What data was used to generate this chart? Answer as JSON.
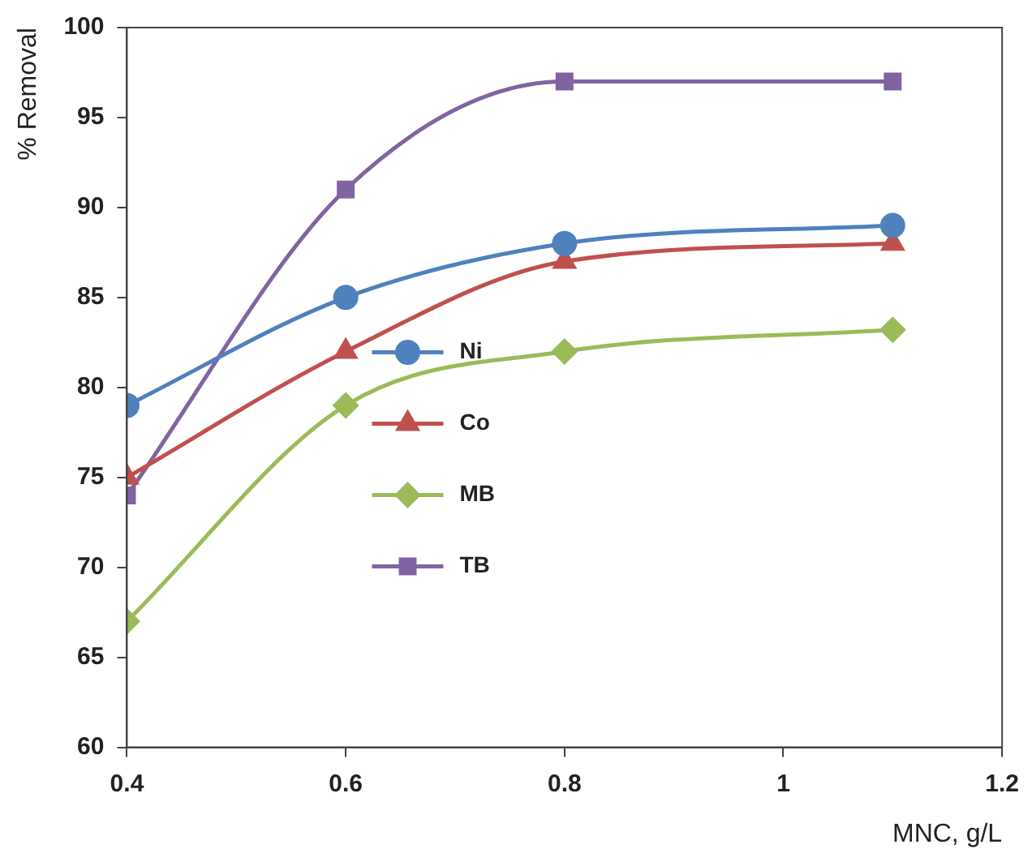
{
  "chart_data": {
    "type": "line",
    "xlabel": "MNC, g/L",
    "ylabel": "% Removal",
    "x": [
      0.4,
      0.6,
      0.8,
      1.1
    ],
    "series": [
      {
        "name": "Ni",
        "color": "#4f81bd",
        "marker": "circle",
        "values": [
          79,
          85,
          88,
          89
        ]
      },
      {
        "name": "Co",
        "color": "#c0504d",
        "marker": "triangle",
        "values": [
          75,
          82,
          87,
          88
        ]
      },
      {
        "name": "MB",
        "color": "#9bbb59",
        "marker": "diamond",
        "values": [
          67,
          79,
          82,
          83.2
        ]
      },
      {
        "name": "TB",
        "color": "#8064a2",
        "marker": "square",
        "values": [
          74,
          91,
          97,
          97
        ]
      }
    ],
    "xlim": [
      0.4,
      1.2
    ],
    "xticks": [
      0.4,
      0.6,
      0.8,
      1,
      1.2
    ],
    "ylim": [
      60,
      100
    ],
    "yticks": [
      60,
      65,
      70,
      75,
      80,
      85,
      90,
      95,
      100
    ],
    "grid": false,
    "legend": "center left",
    "line_style": "solid"
  }
}
